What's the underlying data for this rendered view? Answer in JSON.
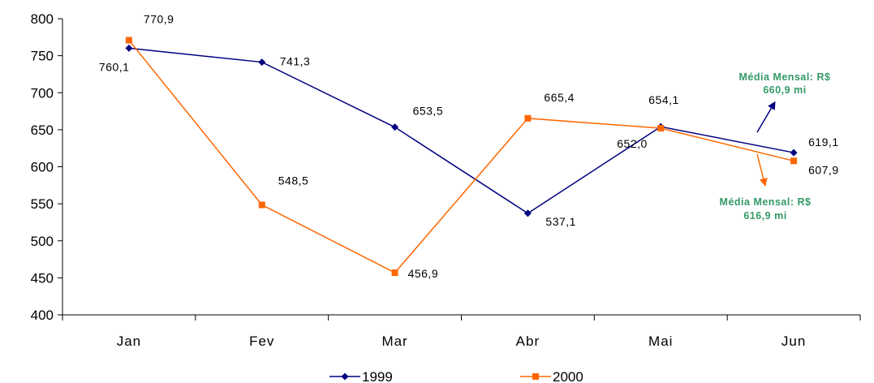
{
  "colors": {
    "series_1999": "#000080",
    "series_2000": "#FF6600",
    "annotation": "#339966",
    "axis": "#000000"
  },
  "chart_data": {
    "type": "line",
    "title": "",
    "xlabel": "",
    "ylabel": "",
    "categories": [
      "Jan",
      "Fev",
      "Mar",
      "Abr",
      "Mai",
      "Jun"
    ],
    "ylim": [
      400,
      800
    ],
    "yticks": [
      "400",
      "450",
      "500",
      "550",
      "600",
      "650",
      "700",
      "750",
      "800"
    ],
    "grid": false,
    "legend_position": "bottom",
    "series": [
      {
        "name": "1999",
        "marker": "diamond",
        "values": [
          760.1,
          741.3,
          653.5,
          537.1,
          654.1,
          619.1
        ],
        "labels": [
          "760,1",
          "741,3",
          "653,5",
          "537,1",
          "654,1",
          "619,1"
        ]
      },
      {
        "name": "2000",
        "marker": "square",
        "values": [
          770.9,
          548.5,
          456.9,
          665.4,
          652.0,
          607.9
        ],
        "labels": [
          "770,9",
          "548,5",
          "456,9",
          "665,4",
          "652,0",
          "607,9"
        ]
      }
    ],
    "annotations": [
      {
        "line1": "Média Mensal: R$",
        "line2": "660,9 mi",
        "series": "1999"
      },
      {
        "line1": "Média Mensal: R$",
        "line2": "616,9 mi",
        "series": "2000"
      }
    ]
  }
}
